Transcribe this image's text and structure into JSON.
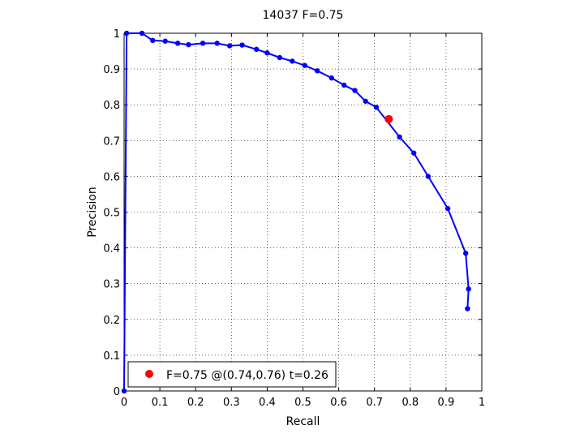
{
  "chart_data": {
    "type": "line",
    "title": "14037 F=0.75",
    "xlabel": "Recall",
    "ylabel": "Precision",
    "xlim": [
      0,
      1
    ],
    "ylim": [
      0,
      1
    ],
    "grid": true,
    "xticks": [
      "0",
      "0.1",
      "0.2",
      "0.3",
      "0.4",
      "0.5",
      "0.6",
      "0.7",
      "0.8",
      "0.9",
      "1"
    ],
    "yticks": [
      "0",
      "0.1",
      "0.2",
      "0.3",
      "0.4",
      "0.5",
      "0.6",
      "0.7",
      "0.8",
      "0.9",
      "1"
    ],
    "series": [
      {
        "color": "#0000ff",
        "x": [
          0.0,
          0.007,
          0.05,
          0.08,
          0.115,
          0.15,
          0.18,
          0.22,
          0.26,
          0.295,
          0.33,
          0.37,
          0.4,
          0.435,
          0.47,
          0.505,
          0.54,
          0.58,
          0.615,
          0.645,
          0.675,
          0.705,
          0.77,
          0.81,
          0.85,
          0.905,
          0.955,
          0.963,
          0.96
        ],
        "y": [
          0.0,
          1.0,
          1.0,
          0.98,
          0.978,
          0.972,
          0.968,
          0.972,
          0.972,
          0.965,
          0.967,
          0.955,
          0.945,
          0.932,
          0.922,
          0.91,
          0.895,
          0.875,
          0.855,
          0.84,
          0.81,
          0.793,
          0.71,
          0.665,
          0.6,
          0.51,
          0.385,
          0.285,
          0.23
        ]
      }
    ],
    "highlight": {
      "x": 0.74,
      "y": 0.76,
      "color": "#ff0000"
    },
    "legend": {
      "position": "bottom-left",
      "text": "F=0.75 @(0.74,0.76) t=0.26"
    }
  }
}
